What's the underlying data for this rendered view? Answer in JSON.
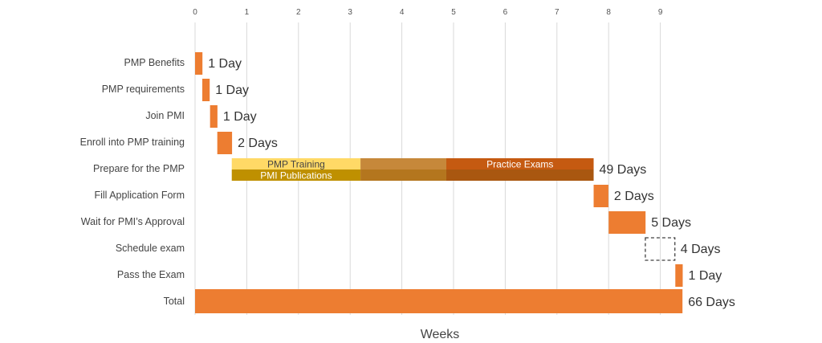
{
  "chart_data": {
    "type": "gantt",
    "xlabel": "Weeks",
    "xlim": [
      0,
      9
    ],
    "ticks": [
      0,
      1,
      2,
      3,
      4,
      5,
      6,
      7,
      8,
      9
    ],
    "grid": true,
    "colors": {
      "bar": "#ED7D31",
      "training": "#FFD966",
      "publications": "#BF9000",
      "mid_top": "#C6883A",
      "mid_bottom": "#B4761E",
      "exams": "#C55A11",
      "exams_bottom": "#A95710",
      "grid": "#D9D9D9",
      "dashed": "#404040"
    },
    "tasks": [
      {
        "name": "PMP Benefits",
        "start": 0.0,
        "duration_days": 1,
        "label": "1 Day"
      },
      {
        "name": "PMP requirements",
        "start": 0.14,
        "duration_days": 1,
        "label": "1 Day"
      },
      {
        "name": "Join PMI",
        "start": 0.29,
        "duration_days": 1,
        "label": "1 Day"
      },
      {
        "name": "Enroll into PMP training",
        "start": 0.43,
        "duration_days": 2,
        "label": "2 Days"
      },
      {
        "name": "Prepare for the PMP",
        "start": 0.71,
        "duration_days": 49,
        "label": "49 Days",
        "segments": [
          {
            "label": "PMP Training",
            "start": 0.71,
            "end": 3.2,
            "part": "top",
            "color": "training"
          },
          {
            "label": "PMI Publications",
            "start": 0.71,
            "end": 3.2,
            "part": "bottom",
            "color": "publications"
          },
          {
            "label": "",
            "start": 3.2,
            "end": 4.86,
            "part": "top",
            "color": "mid_top"
          },
          {
            "label": "",
            "start": 3.2,
            "end": 4.86,
            "part": "bottom",
            "color": "mid_bottom"
          },
          {
            "label": "Practice Exams",
            "start": 4.86,
            "end": 7.71,
            "part": "top",
            "color": "exams"
          },
          {
            "label": "",
            "start": 4.86,
            "end": 7.71,
            "part": "bottom",
            "color": "exams_bottom"
          }
        ]
      },
      {
        "name": "Fill Application Form",
        "start": 7.71,
        "duration_days": 2,
        "label": "2 Days"
      },
      {
        "name": "Wait for PMI’s Approval",
        "start": 8.0,
        "duration_days": 5,
        "label": "5 Days"
      },
      {
        "name": "Schedule exam",
        "start": 8.71,
        "duration_days": 4,
        "label": "4 Days",
        "style": "dashed"
      },
      {
        "name": "Pass the Exam",
        "start": 9.29,
        "duration_days": 1,
        "label": "1 Day"
      },
      {
        "name": "Total",
        "start": 0.0,
        "duration_days": 66,
        "label": "66 Days"
      }
    ]
  }
}
